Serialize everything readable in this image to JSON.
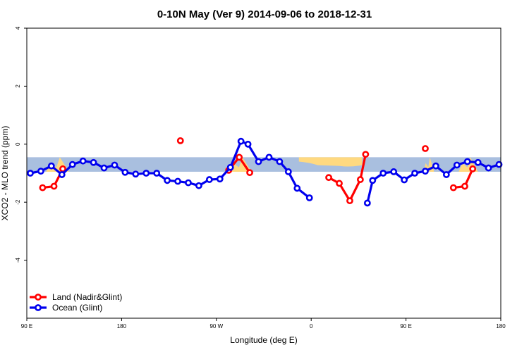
{
  "chart_data": {
    "type": "line",
    "title": "0-10N May (Ver 9)   2014-09-06 to 2018-12-31",
    "xlabel": "Longitude (deg E)",
    "ylabel": "XCO2 - MLO trend (ppm)",
    "xlim": [
      -90,
      180
    ],
    "ylim": [
      -6,
      4
    ],
    "x_ticks": [
      {
        "value": -90,
        "label": "90 E"
      },
      {
        "value": -36,
        "label": "180"
      },
      {
        "value": 18,
        "label": "90 W"
      },
      {
        "value": 72,
        "label": "0"
      },
      {
        "value": 126,
        "label": "90 E"
      },
      {
        "value": 180,
        "label": "180"
      }
    ],
    "y_ticks": [
      -4,
      -2,
      0,
      2,
      4
    ],
    "band": {
      "y_range": [
        -0.95,
        -0.45
      ],
      "color": "#a9bfdf",
      "land_color": "#ffd980"
    },
    "legend": {
      "position": "bottom-left"
    },
    "series": [
      {
        "name": "Land (Nadir&Glint)",
        "color": "#ff0000",
        "segments": [
          [
            [
              -81,
              -1.5
            ],
            [
              -74.5,
              -1.45
            ],
            [
              -69.5,
              -0.85
            ]
          ],
          [
            [
              25,
              -0.9
            ],
            [
              31,
              -0.45
            ],
            [
              37,
              -0.98
            ]
          ],
          [
            [
              -2.5,
              0.12
            ]
          ],
          [
            [
              82,
              -1.15
            ],
            [
              88,
              -1.35
            ],
            [
              94,
              -1.95
            ],
            [
              100,
              -1.22
            ],
            [
              103,
              -0.35
            ]
          ],
          [
            [
              137,
              -0.15
            ]
          ],
          [
            [
              153,
              -1.5
            ],
            [
              159.5,
              -1.45
            ],
            [
              164,
              -0.85
            ]
          ]
        ]
      },
      {
        "name": "Ocean (Glint)",
        "color": "#0000ee",
        "segments": [
          [
            [
              -88,
              -1.0
            ],
            [
              -82,
              -0.93
            ],
            [
              -76,
              -0.75
            ],
            [
              -70,
              -1.05
            ],
            [
              -64,
              -0.7
            ],
            [
              -58,
              -0.58
            ],
            [
              -52,
              -0.63
            ],
            [
              -46,
              -0.82
            ],
            [
              -40,
              -0.72
            ],
            [
              -34,
              -0.97
            ],
            [
              -28,
              -1.03
            ],
            [
              -22,
              -1.0
            ],
            [
              -16,
              -1.0
            ],
            [
              -10,
              -1.25
            ],
            [
              -4,
              -1.28
            ],
            [
              2,
              -1.33
            ],
            [
              8,
              -1.43
            ],
            [
              14,
              -1.22
            ],
            [
              20,
              -1.2
            ],
            [
              26,
              -0.8
            ],
            [
              32,
              0.1
            ],
            [
              36,
              0.0
            ],
            [
              42,
              -0.6
            ],
            [
              48,
              -0.45
            ],
            [
              54,
              -0.6
            ],
            [
              59,
              -0.95
            ],
            [
              64,
              -1.52
            ],
            [
              71,
              -1.85
            ]
          ],
          [
            [
              104,
              -2.03
            ],
            [
              107,
              -1.25
            ],
            [
              113,
              -1.0
            ],
            [
              119,
              -0.95
            ],
            [
              125,
              -1.23
            ],
            [
              131,
              -1.0
            ],
            [
              137,
              -0.93
            ],
            [
              143,
              -0.75
            ],
            [
              149,
              -1.05
            ],
            [
              155,
              -0.72
            ],
            [
              161,
              -0.6
            ],
            [
              167,
              -0.63
            ],
            [
              173,
              -0.82
            ],
            [
              179,
              -0.7
            ]
          ]
        ]
      }
    ]
  },
  "land_patches": [
    {
      "x_range": [
        -79,
        -66
      ],
      "label": "land-strip-left"
    },
    {
      "x_range": [
        25,
        38
      ],
      "label": "land-strip-americas"
    },
    {
      "x_range": [
        65,
        101
      ],
      "label": "land-strip-africa"
    },
    {
      "x_range": [
        136,
        142
      ],
      "label": "land-strip-island"
    },
    {
      "x_range": [
        156,
        167
      ],
      "label": "land-strip-right"
    }
  ]
}
